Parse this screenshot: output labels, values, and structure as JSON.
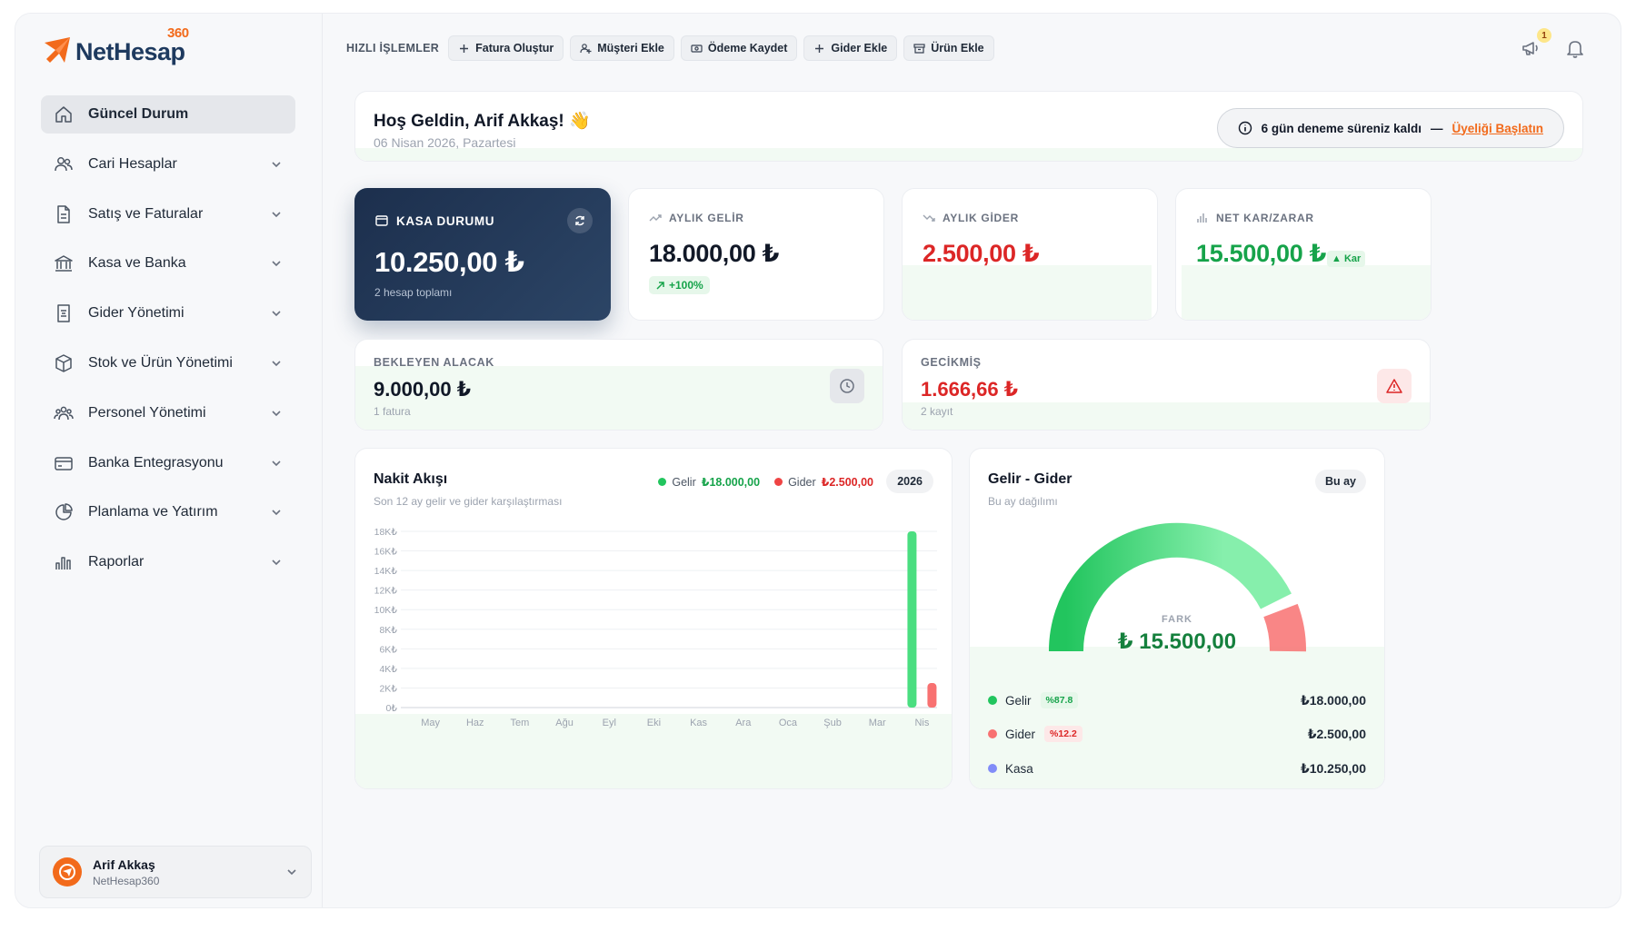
{
  "brand": {
    "name": "NetHesap",
    "suffix": "360"
  },
  "sidebar": {
    "items": [
      {
        "label": "Güncel Durum",
        "icon": "home-icon",
        "active": true
      },
      {
        "label": "Cari Hesaplar",
        "icon": "users-icon"
      },
      {
        "label": "Satış ve Faturalar",
        "icon": "document-icon"
      },
      {
        "label": "Kasa ve Banka",
        "icon": "bank-icon"
      },
      {
        "label": "Gider Yönetimi",
        "icon": "receipt-icon"
      },
      {
        "label": "Stok ve Ürün Yönetimi",
        "icon": "box-icon"
      },
      {
        "label": "Personel Yönetimi",
        "icon": "team-icon"
      },
      {
        "label": "Banka Entegrasyonu",
        "icon": "card-icon"
      },
      {
        "label": "Planlama ve Yatırım",
        "icon": "pie-icon"
      },
      {
        "label": "Raporlar",
        "icon": "bar-chart-icon"
      }
    ],
    "user": {
      "name": "Arif Akkaş",
      "org": "NetHesap360"
    }
  },
  "topbar": {
    "quick_label": "HIZLI İŞLEMLER",
    "buttons": [
      {
        "label": "Fatura Oluştur",
        "icon": "+"
      },
      {
        "label": "Müşteri Ekle",
        "icon": "user-plus"
      },
      {
        "label": "Ödeme Kaydet",
        "icon": "cash"
      },
      {
        "label": "Gider Ekle",
        "icon": "+"
      },
      {
        "label": "Ürün Ekle",
        "icon": "archive"
      }
    ],
    "notification_count": "1"
  },
  "welcome": {
    "title": "Hoş Geldin, Arif Akkaş! 👋",
    "date": "06 Nisan 2026, Pazartesi",
    "trial_text": "6 gün deneme süreniz kaldı",
    "trial_sep": "—",
    "trial_link": "Üyeliği Başlatın"
  },
  "kasa": {
    "label": "KASA DURUMU",
    "value": "10.250,00 ₺",
    "sub": "2 hesap toplamı"
  },
  "stats": {
    "gelir": {
      "label": "AYLIK GELİR",
      "value": "18.000,00 ₺",
      "change": "+100%"
    },
    "gider": {
      "label": "AYLIK GİDER",
      "value": "2.500,00 ₺"
    },
    "net": {
      "label": "NET KAR/ZARAR",
      "value": "15.500,00 ₺",
      "badge": "Kar"
    }
  },
  "bekleyen": {
    "label": "BEKLEYEN ALACAK",
    "value": "9.000,00 ₺",
    "count": "1 fatura"
  },
  "gecikmis": {
    "label": "GECİKMİŞ",
    "value": "1.666,66 ₺",
    "count": "2 kayıt"
  },
  "nakit": {
    "title": "Nakit Akışı",
    "subtitle": "Son 12 ay gelir ve gider karşılaştırması",
    "legend_gelir": "Gelir",
    "legend_gelir_val": "₺18.000,00",
    "legend_gider": "Gider",
    "legend_gider_val": "₺2.500,00",
    "year": "2026"
  },
  "gelir_gider": {
    "title": "Gelir - Gider",
    "subtitle": "Bu ay dağılımı",
    "period": "Bu ay",
    "fark_label": "FARK",
    "fark_value": "₺ 15.500,00",
    "rows": [
      {
        "label": "Gelir",
        "pct": "%87.8",
        "amount": "₺18.000,00"
      },
      {
        "label": "Gider",
        "pct": "%12.2",
        "amount": "₺2.500,00"
      },
      {
        "label": "Kasa",
        "pct": "",
        "amount": "₺10.250,00"
      }
    ]
  },
  "colors": {
    "accent": "#f26a1b",
    "navy": "#1e3a5f",
    "green": "#16a34a",
    "red": "#dc2626"
  },
  "chart_data": {
    "type": "bar",
    "title": "Nakit Akışı",
    "categories": [
      "May",
      "Haz",
      "Tem",
      "Ağu",
      "Eyl",
      "Eki",
      "Kas",
      "Ara",
      "Oca",
      "Şub",
      "Mar",
      "Nis"
    ],
    "series": [
      {
        "name": "Gelir",
        "color": "#4ade80",
        "values": [
          0,
          0,
          0,
          0,
          0,
          0,
          0,
          0,
          0,
          0,
          0,
          18000
        ]
      },
      {
        "name": "Gider",
        "color": "#f87171",
        "values": [
          0,
          0,
          0,
          0,
          0,
          0,
          0,
          0,
          0,
          0,
          0,
          2500
        ]
      }
    ],
    "yticks": [
      "0₺",
      "2K₺",
      "4K₺",
      "6K₺",
      "8K₺",
      "10K₺",
      "12K₺",
      "14K₺",
      "16K₺",
      "18K₺"
    ],
    "ylim": [
      0,
      18000
    ],
    "grid": true
  }
}
